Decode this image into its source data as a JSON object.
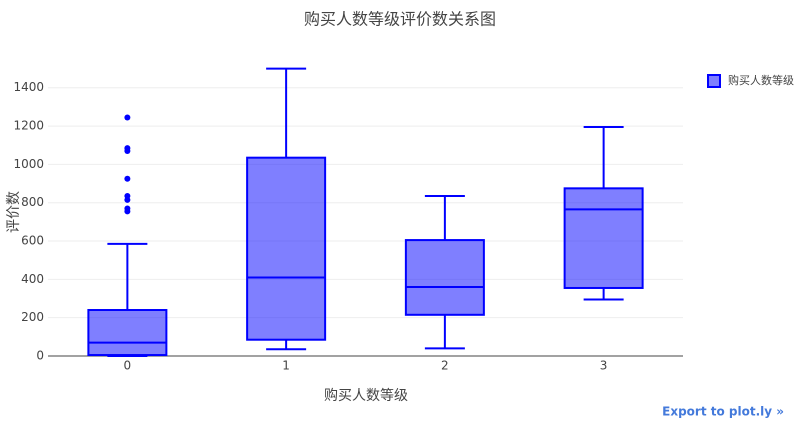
{
  "chart_data": {
    "type": "box",
    "title": "购买人数等级评价数关系图",
    "x_label": "购买人数等级",
    "y_label": "评价数",
    "categories": [
      "0",
      "1",
      "2",
      "3"
    ],
    "series": [
      {
        "name": "购买人数等级",
        "color": "#0000ff",
        "boxes": [
          {
            "min": 0,
            "q1": 5,
            "median": 70,
            "q3": 240,
            "max": 585,
            "outliers": [
              1245,
              1085,
              1070,
              925,
              835,
              815,
              770,
              755
            ]
          },
          {
            "min": 35,
            "q1": 85,
            "median": 410,
            "q3": 1035,
            "max": 1500,
            "outliers": []
          },
          {
            "min": 40,
            "q1": 215,
            "median": 360,
            "q3": 605,
            "max": 835,
            "outliers": []
          },
          {
            "min": 295,
            "q1": 355,
            "median": 765,
            "q3": 875,
            "max": 1195,
            "outliers": []
          }
        ]
      }
    ],
    "ylim": [
      0,
      1550
    ],
    "yticks": [
      0,
      200,
      400,
      600,
      800,
      1000,
      1200,
      1400
    ],
    "grid": true,
    "legend": "top-right",
    "link": "Export to plot.ly »"
  }
}
